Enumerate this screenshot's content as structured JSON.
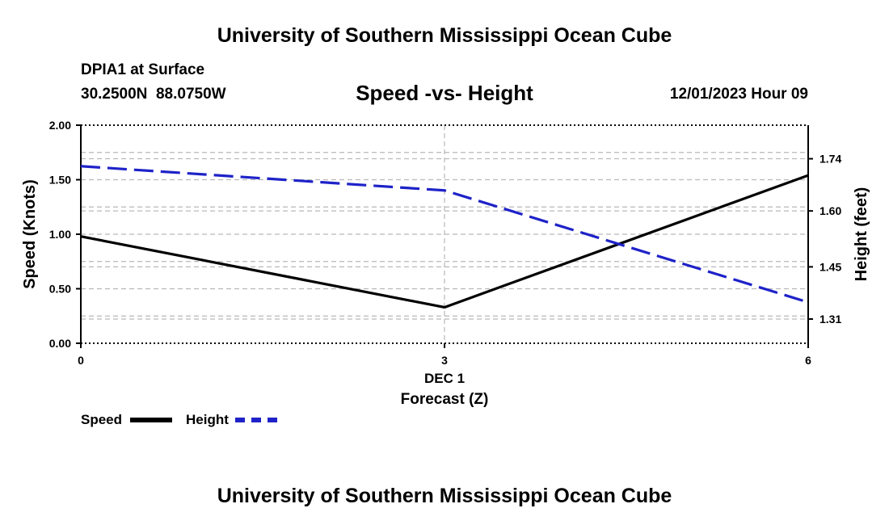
{
  "header": {
    "title": "University of Southern Mississippi Ocean Cube",
    "station": "DPIA1 at Surface",
    "coords": "30.2500N  88.0750W",
    "datetime": "12/01/2023 Hour 09"
  },
  "footer": {
    "title": "University of Southern Mississippi Ocean Cube"
  },
  "legend": {
    "items": [
      {
        "label": "Speed",
        "color": "#000000",
        "style": "solid"
      },
      {
        "label": "Height",
        "color": "#1e22c8",
        "style": "dashed"
      }
    ]
  },
  "chart_data": {
    "type": "line",
    "title": "Speed -vs- Height",
    "x": [
      0,
      3,
      6
    ],
    "x_tick_labels": [
      "0",
      "3",
      "6"
    ],
    "x_date_label": "DEC 1",
    "xlabel": "Forecast (Z)",
    "xlim": [
      0,
      6
    ],
    "ylabel": "Speed (Knots)",
    "ylim": [
      0,
      2
    ],
    "y_ticks": [
      "0.00",
      "0.50",
      "1.00",
      "1.50",
      "2.00"
    ],
    "y2label": "Height (feet)",
    "y2lim": [
      1.245,
      1.83
    ],
    "y2_ticks": [
      "1.31",
      "1.45",
      "1.60",
      "1.74"
    ],
    "grid": true,
    "series": [
      {
        "name": "Speed",
        "axis": "left",
        "color": "#000000",
        "style": "solid",
        "values": [
          0.98,
          0.33,
          1.54
        ]
      },
      {
        "name": "Height",
        "axis": "right",
        "color": "#1e22c8",
        "style": "dashed",
        "values": [
          1.72,
          1.655,
          1.355
        ]
      }
    ]
  }
}
